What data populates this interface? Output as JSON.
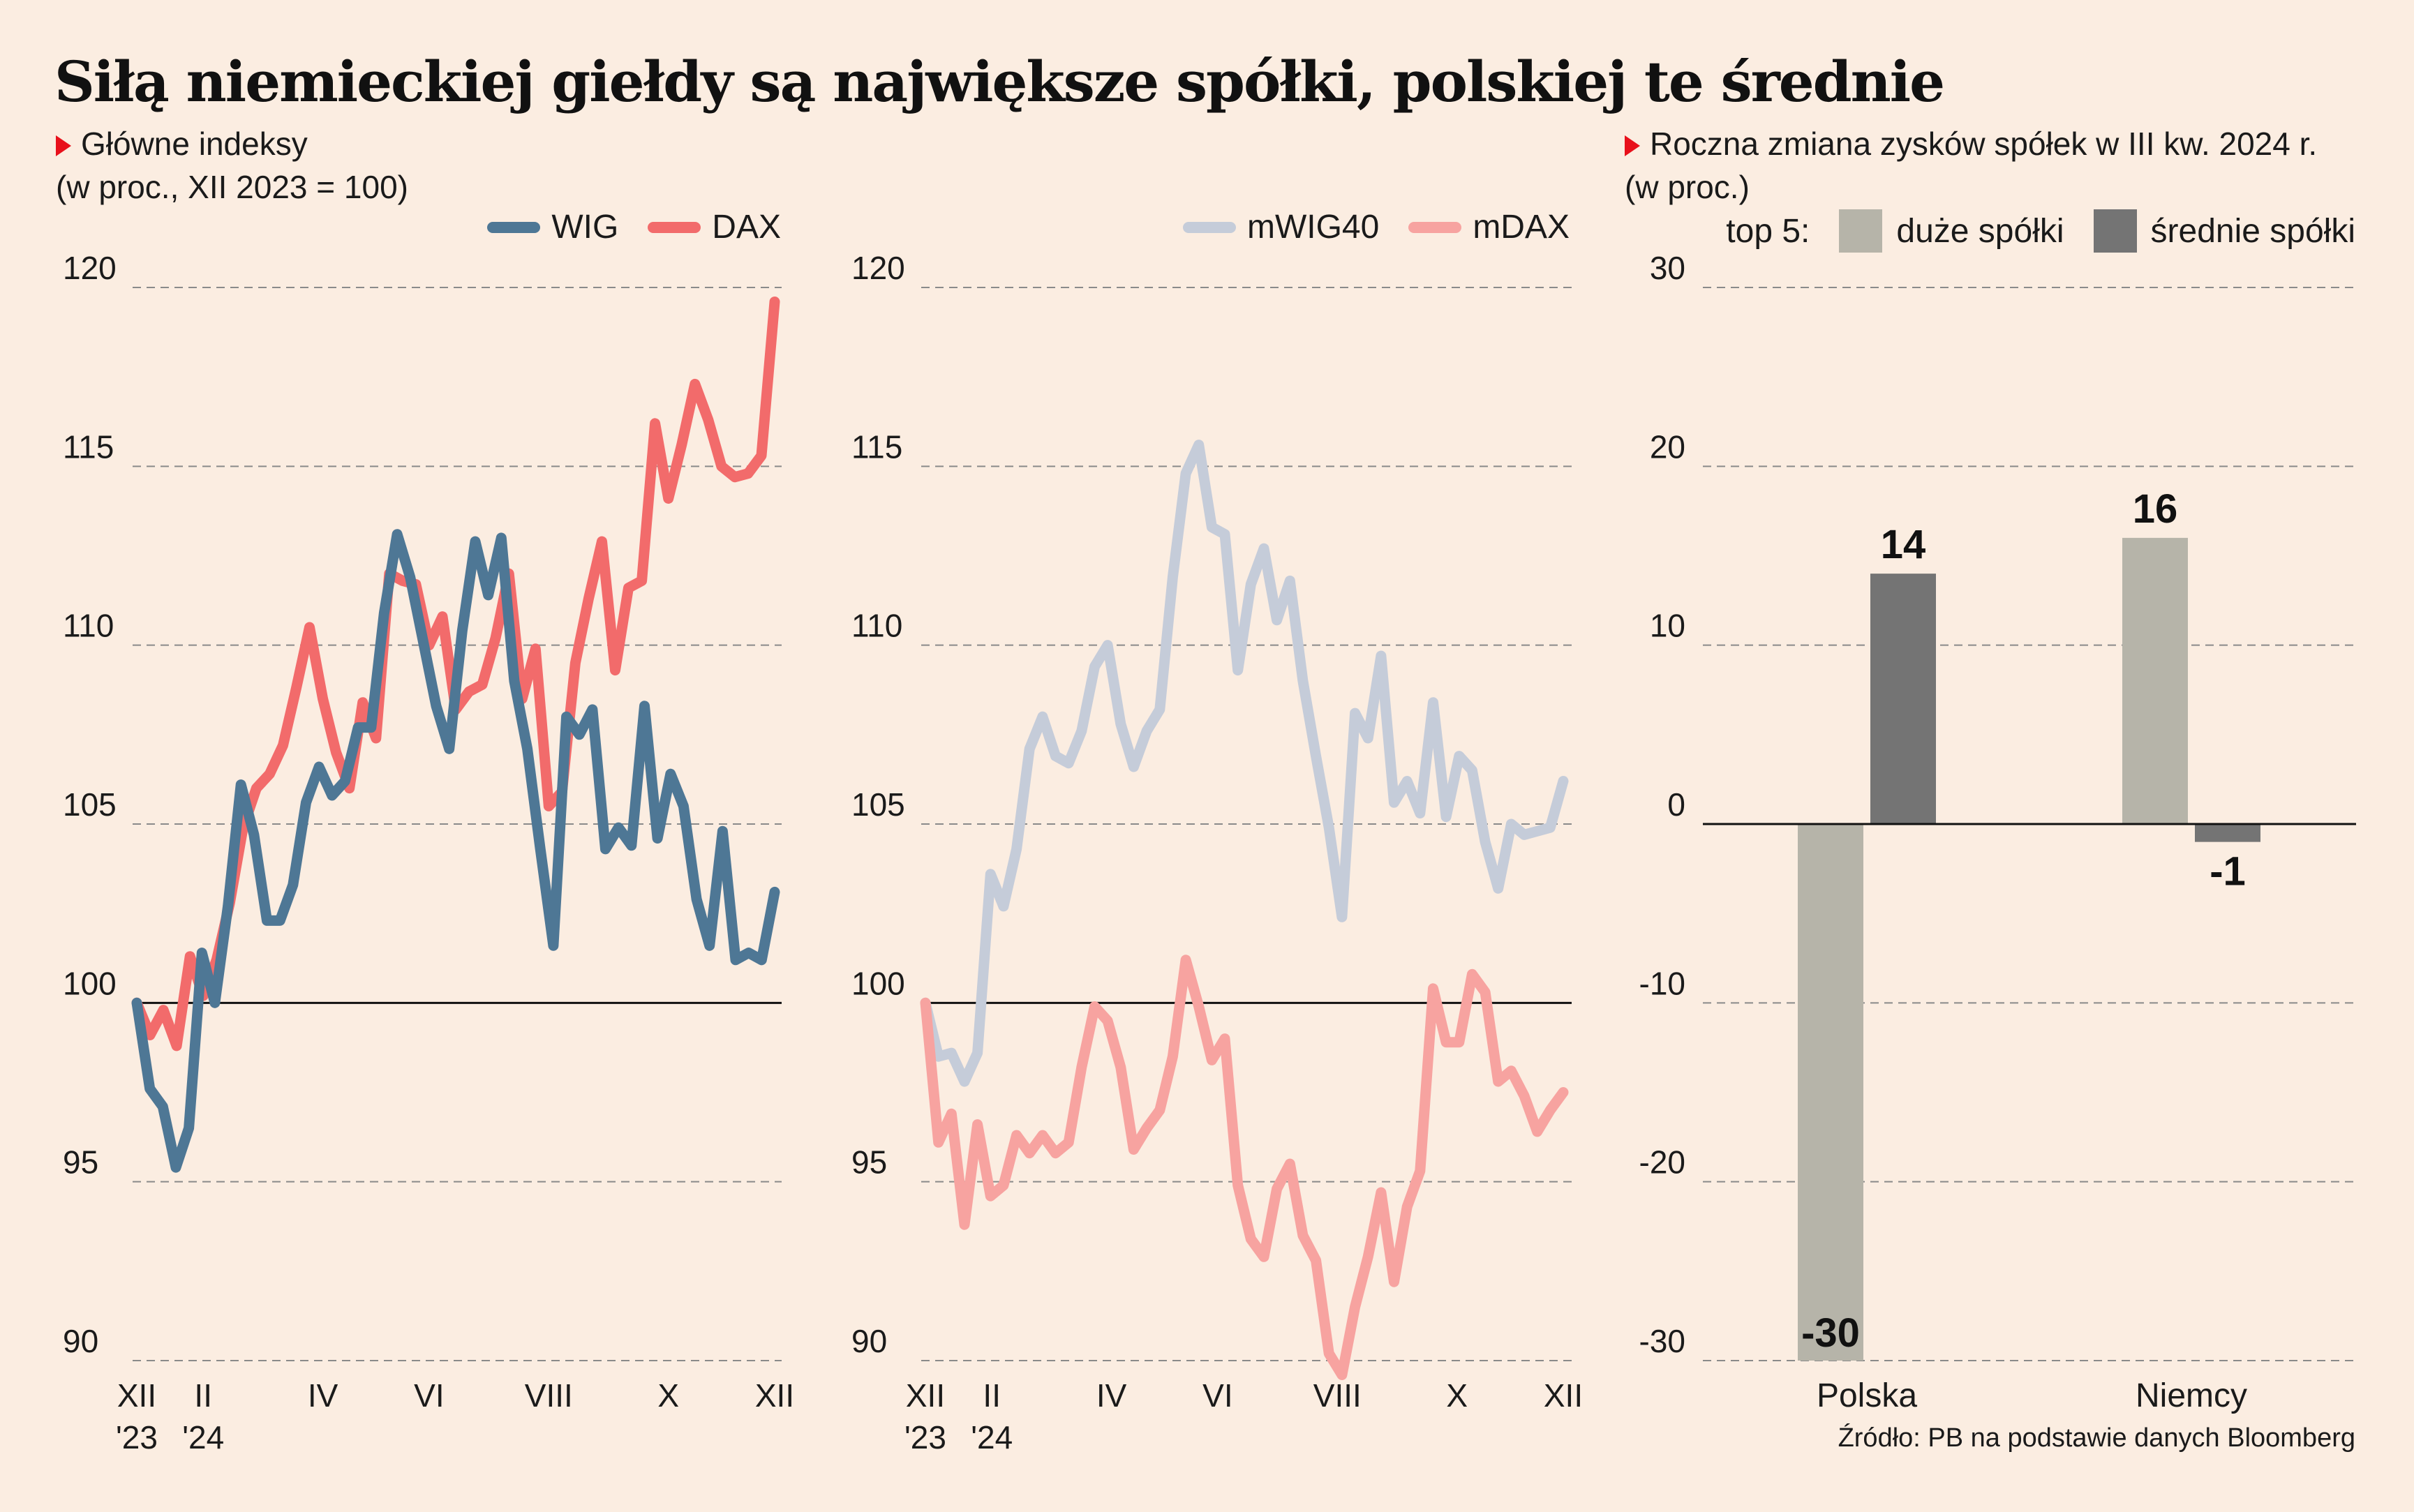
{
  "title": "Siłą niemieckiej giełdy są największe spółki, polskiej te średnie",
  "left": {
    "subtitle": "Główne indeksy",
    "subtitle2": "(w proc., XII 2023 = 100)",
    "legend": [
      {
        "name": "WIG",
        "color": "#4e7795"
      },
      {
        "name": "DAX",
        "color": "#f26b6b"
      }
    ]
  },
  "middle": {
    "legend": [
      {
        "name": "mWIG40",
        "color": "#c5ccd9"
      },
      {
        "name": "mDAX",
        "color": "#f7a3a0"
      }
    ]
  },
  "right": {
    "subtitle": "Roczna zmiana zysków spółek w III kw. 2024 r.",
    "subtitle2": "(w proc.)",
    "legend_prefix": "top 5:",
    "legend": [
      {
        "name": "duże spółki",
        "color": "#b6b4a9"
      },
      {
        "name": "średnie spółki",
        "color": "#747474"
      }
    ]
  },
  "source": "Źródło: PB na podstawie danych Bloomberg",
  "chart_data": [
    {
      "type": "line",
      "ylim": [
        90,
        120
      ],
      "yticks": [
        90,
        95,
        100,
        105,
        110,
        115,
        120
      ],
      "xlim": [
        0,
        48
      ],
      "xticks": [
        {
          "pos": 0,
          "label": [
            "XII",
            "'23"
          ]
        },
        {
          "pos": 5,
          "label": [
            "II",
            "'24"
          ]
        },
        {
          "pos": 14,
          "label": [
            "IV"
          ]
        },
        {
          "pos": 22,
          "label": [
            "VI"
          ]
        },
        {
          "pos": 31,
          "label": [
            "VIII"
          ]
        },
        {
          "pos": 40,
          "label": [
            "X"
          ]
        },
        {
          "pos": 48,
          "label": [
            "XII"
          ]
        }
      ],
      "series": [
        {
          "name": "DAX",
          "color": "#f26b6b",
          "values": [
            100,
            99.1,
            99.8,
            98.8,
            101.3,
            100.2,
            101.2,
            102.8,
            104.9,
            106.0,
            106.4,
            107.2,
            108.8,
            110.5,
            108.5,
            107.0,
            106.0,
            108.4,
            107.4,
            112.0,
            111.8,
            111.7,
            110.0,
            110.8,
            108.2,
            108.7,
            108.9,
            110.2,
            112.0,
            108.5,
            109.9,
            105.5,
            105.9,
            109.5,
            111.3,
            112.9,
            109.3,
            111.6,
            111.8,
            116.2,
            114.1,
            115.6,
            117.3,
            116.3,
            115.0,
            114.7,
            114.8,
            115.3,
            119.6
          ]
        },
        {
          "name": "WIG",
          "color": "#4e7795",
          "values": [
            100,
            97.6,
            97.1,
            95.4,
            96.5,
            101.4,
            100.0,
            102.7,
            106.1,
            104.7,
            102.3,
            102.3,
            103.3,
            105.6,
            106.6,
            105.8,
            106.2,
            107.7,
            107.7,
            110.9,
            113.1,
            111.9,
            110.1,
            108.3,
            107.1,
            110.4,
            112.9,
            111.4,
            113.0,
            109.0,
            107.1,
            104.3,
            101.6,
            108.0,
            107.5,
            108.2,
            104.3,
            104.9,
            104.4,
            108.3,
            104.6,
            106.4,
            105.5,
            102.9,
            101.6,
            104.8,
            101.2,
            101.4,
            101.2,
            103.1
          ]
        }
      ]
    },
    {
      "type": "line",
      "ylim": [
        90,
        120
      ],
      "yticks": [
        90,
        95,
        100,
        105,
        110,
        115,
        120
      ],
      "xlim": [
        0,
        48
      ],
      "xticks": [
        {
          "pos": 0,
          "label": [
            "XII",
            "'23"
          ]
        },
        {
          "pos": 5,
          "label": [
            "II",
            "'24"
          ]
        },
        {
          "pos": 14,
          "label": [
            "IV"
          ]
        },
        {
          "pos": 22,
          "label": [
            "VI"
          ]
        },
        {
          "pos": 31,
          "label": [
            "VIII"
          ]
        },
        {
          "pos": 40,
          "label": [
            "X"
          ]
        },
        {
          "pos": 48,
          "label": [
            "XII"
          ]
        }
      ],
      "series": [
        {
          "name": "mWIG40",
          "color": "#c5ccd9",
          "values": [
            100,
            98.5,
            98.6,
            97.8,
            98.6,
            103.6,
            102.7,
            104.3,
            107.1,
            108.0,
            106.9,
            106.7,
            107.6,
            109.4,
            110.0,
            107.8,
            106.6,
            107.6,
            108.2,
            111.9,
            114.8,
            115.6,
            113.3,
            113.1,
            109.3,
            111.7,
            112.7,
            110.7,
            111.8,
            109.0,
            106.9,
            104.9,
            102.4,
            108.1,
            107.4,
            109.7,
            105.6,
            106.2,
            105.3,
            108.4,
            105.2,
            106.9,
            106.5,
            104.5,
            103.2,
            105.0,
            104.7,
            104.8,
            104.9,
            106.2
          ]
        },
        {
          "name": "mDAX",
          "color": "#f7a3a0",
          "values": [
            100,
            96.1,
            96.9,
            93.8,
            96.6,
            94.6,
            94.9,
            96.3,
            95.8,
            96.3,
            95.8,
            96.1,
            98.2,
            99.9,
            99.5,
            98.2,
            95.9,
            96.5,
            97.0,
            98.5,
            101.2,
            99.9,
            98.4,
            99.0,
            94.9,
            93.4,
            92.9,
            94.8,
            95.5,
            93.5,
            92.8,
            90.2,
            89.6,
            91.5,
            92.9,
            94.7,
            92.2,
            94.3,
            95.3,
            100.4,
            98.9,
            98.9,
            100.8,
            100.3,
            97.8,
            98.1,
            97.4,
            96.4,
            97.0,
            97.5
          ]
        }
      ]
    },
    {
      "type": "bar",
      "categories": [
        "Polska",
        "Niemcy"
      ],
      "ylim": [
        -30,
        30
      ],
      "yticks": [
        -30,
        -20,
        -10,
        0,
        10,
        20,
        30
      ],
      "series": [
        {
          "name": "duże spółki",
          "color": "#b6b4a9",
          "values": [
            -30,
            16
          ]
        },
        {
          "name": "średnie spółki",
          "color": "#747474",
          "values": [
            14,
            -1
          ]
        }
      ],
      "value_labels": [
        [
          "-30",
          "16"
        ],
        [
          "14",
          "-1"
        ]
      ]
    }
  ]
}
